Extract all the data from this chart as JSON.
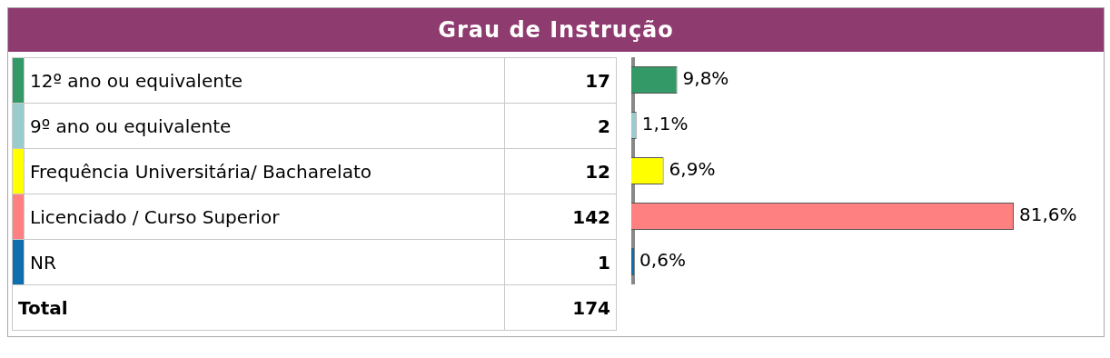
{
  "chart_data": {
    "type": "bar",
    "orientation": "horizontal",
    "title": "Grau de Instrução",
    "categories": [
      "12º ano ou equivalente",
      "9º ano ou equivalente",
      "Frequência Universitária/ Bacharelato",
      "Licenciado / Curso Superior",
      "NR"
    ],
    "values": [
      9.8,
      1.1,
      6.9,
      81.6,
      0.6
    ],
    "colors": [
      "#339966",
      "#99cccc",
      "#ffff00",
      "#ff8080",
      "#0e6fae"
    ],
    "value_labels": [
      "9,8%",
      "1,1%",
      "6,9%",
      "81,6%",
      "0,6%"
    ],
    "annotations": [
      "17",
      "2",
      "12",
      "142",
      "1",
      "Total",
      "174"
    ],
    "xlim": [
      0,
      81.6
    ],
    "legend": false
  }
}
